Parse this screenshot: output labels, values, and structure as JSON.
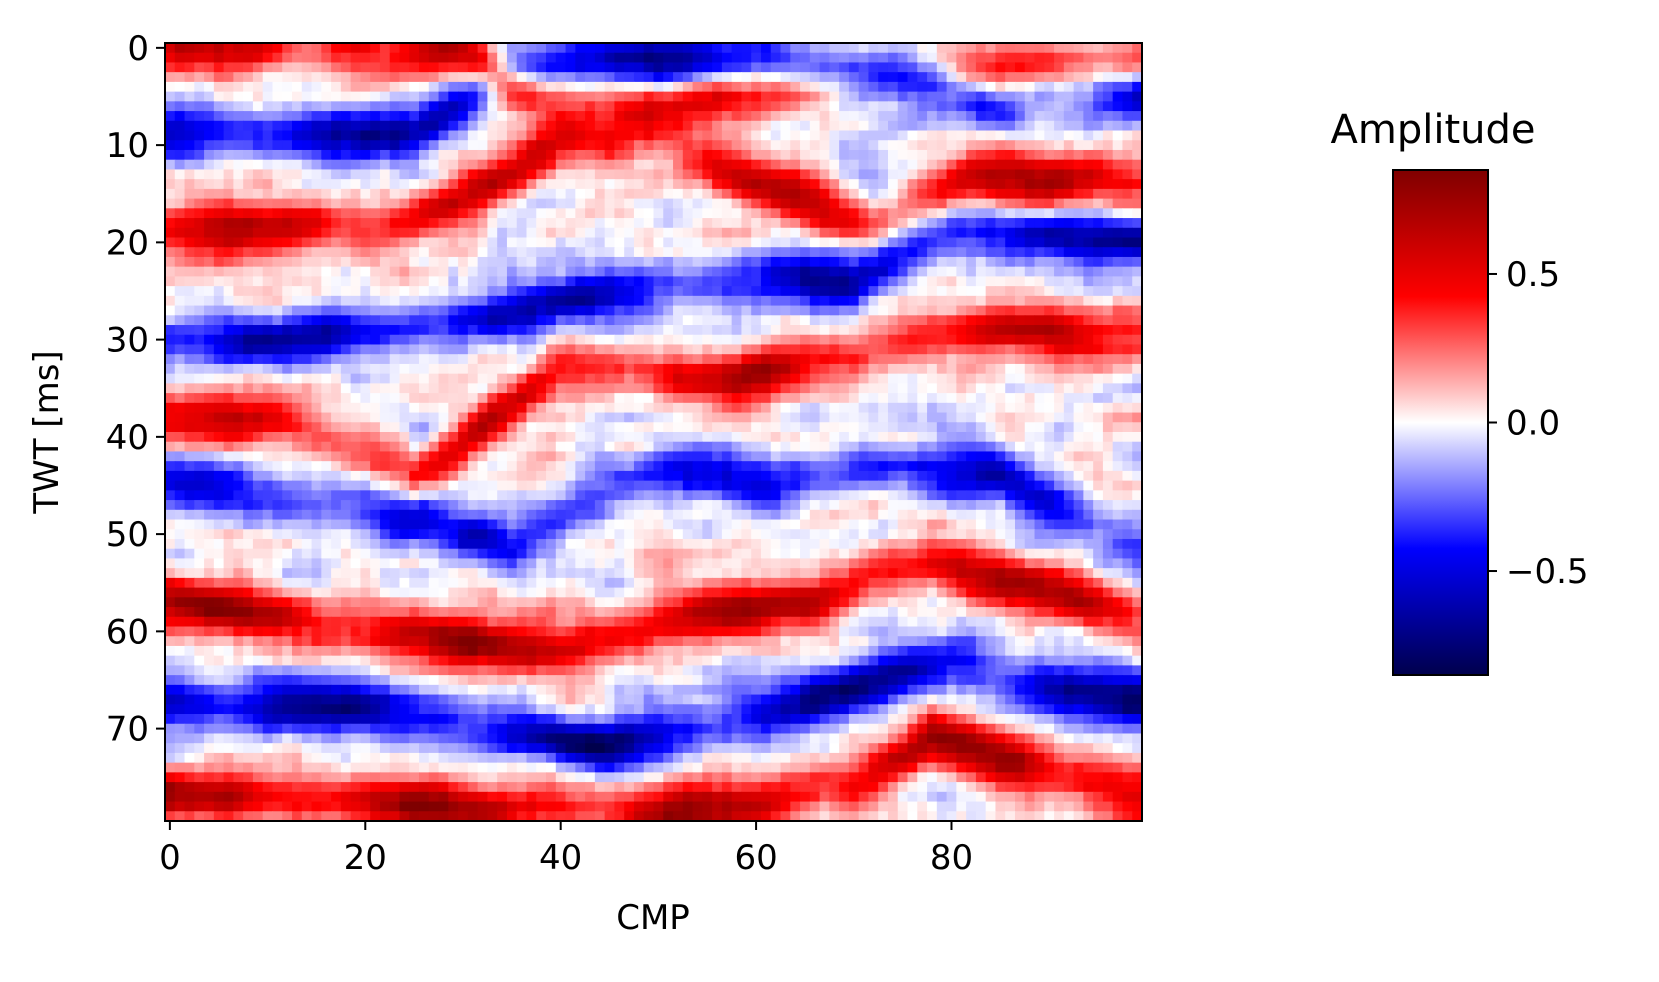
{
  "chart_data": {
    "type": "heatmap",
    "title": "",
    "xlabel": "CMP",
    "ylabel": "TWT [ms]",
    "x_range": [
      0,
      99
    ],
    "y_range": [
      0,
      79
    ],
    "y_inverted": true,
    "x_ticks": [
      0,
      20,
      40,
      60,
      80
    ],
    "x_tick_labels": [
      "0",
      "20",
      "40",
      "60",
      "80"
    ],
    "y_ticks": [
      0,
      10,
      20,
      30,
      40,
      50,
      60,
      70
    ],
    "y_tick_labels": [
      "0",
      "10",
      "20",
      "30",
      "40",
      "50",
      "60",
      "70"
    ],
    "colormap": "seismic",
    "colormap_stops": [
      "#00004c",
      "#0000ff",
      "#ffffff",
      "#ff0000",
      "#7f0000"
    ],
    "value_range": [
      -0.85,
      0.85
    ],
    "colorbar": {
      "title": "Amplitude",
      "ticks": [
        0.5,
        0.0,
        -0.5
      ],
      "tick_labels": [
        "0.5",
        "0.0",
        "−0.5"
      ]
    },
    "reflectors": [
      {
        "amp": 0.6,
        "base": 1,
        "pts": [
          [
            0,
            0
          ],
          [
            30,
            0
          ],
          [
            38,
            6
          ],
          [
            50,
            6
          ],
          [
            62,
            4
          ],
          [
            70,
            3
          ],
          [
            80,
            3
          ],
          [
            100,
            2
          ]
        ]
      },
      {
        "amp": -0.75,
        "base": 9,
        "pts": [
          [
            0,
            9
          ],
          [
            25,
            9
          ],
          [
            35,
            2
          ],
          [
            48,
            1
          ],
          [
            60,
            2
          ],
          [
            75,
            3
          ],
          [
            85,
            5
          ],
          [
            100,
            5
          ]
        ]
      },
      {
        "amp": 0.7,
        "base": 19,
        "pts": [
          [
            0,
            19
          ],
          [
            25,
            18
          ],
          [
            40,
            10
          ],
          [
            48,
            9
          ],
          [
            60,
            14
          ],
          [
            72,
            18
          ],
          [
            82,
            13
          ],
          [
            100,
            14
          ]
        ]
      },
      {
        "amp": -0.7,
        "base": 30,
        "pts": [
          [
            0,
            30
          ],
          [
            15,
            30
          ],
          [
            30,
            28
          ],
          [
            45,
            25
          ],
          [
            60,
            24
          ],
          [
            70,
            24
          ],
          [
            80,
            19
          ],
          [
            100,
            20
          ]
        ]
      },
      {
        "amp": 0.65,
        "base": 38,
        "pts": [
          [
            0,
            38
          ],
          [
            10,
            38
          ],
          [
            25,
            44
          ],
          [
            40,
            33
          ],
          [
            58,
            34
          ],
          [
            72,
            31
          ],
          [
            85,
            29
          ],
          [
            100,
            30
          ]
        ]
      },
      {
        "amp": -0.55,
        "base": 45,
        "pts": [
          [
            0,
            45
          ],
          [
            20,
            47
          ],
          [
            35,
            51
          ],
          [
            50,
            43
          ],
          [
            62,
            45
          ],
          [
            75,
            43
          ],
          [
            85,
            44
          ],
          [
            100,
            52
          ]
        ]
      },
      {
        "amp": 0.8,
        "base": 57,
        "pts": [
          [
            0,
            57
          ],
          [
            20,
            60
          ],
          [
            40,
            62
          ],
          [
            55,
            58
          ],
          [
            65,
            57
          ],
          [
            78,
            53
          ],
          [
            90,
            56
          ],
          [
            100,
            59
          ]
        ]
      },
      {
        "amp": -0.75,
        "base": 67,
        "pts": [
          [
            0,
            67
          ],
          [
            20,
            68
          ],
          [
            45,
            72
          ],
          [
            60,
            69
          ],
          [
            70,
            66
          ],
          [
            80,
            63
          ],
          [
            90,
            66
          ],
          [
            100,
            67
          ]
        ]
      },
      {
        "amp": 0.8,
        "base": 77,
        "pts": [
          [
            0,
            77
          ],
          [
            30,
            78
          ],
          [
            50,
            79
          ],
          [
            60,
            78
          ],
          [
            70,
            76
          ],
          [
            78,
            71
          ],
          [
            90,
            74
          ],
          [
            100,
            77
          ]
        ]
      }
    ],
    "noise_amp": 0.25,
    "nx": 100,
    "ny": 80
  }
}
